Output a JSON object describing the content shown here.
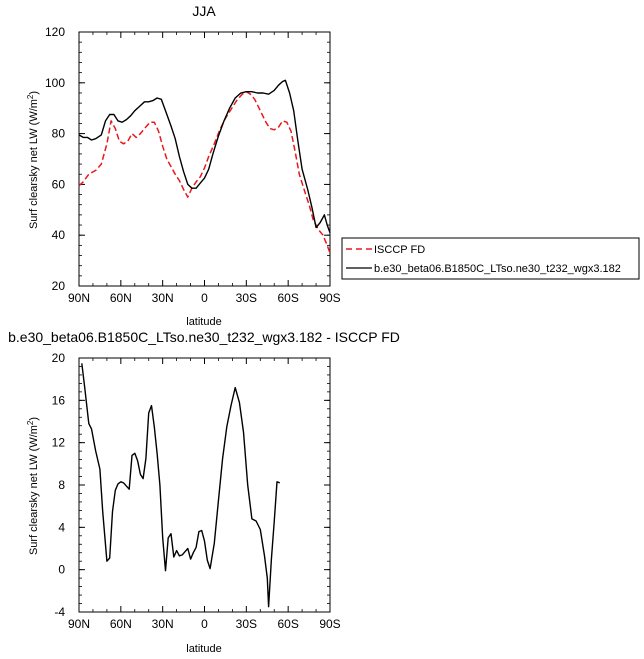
{
  "chart_data": [
    {
      "type": "line",
      "title": "JJA",
      "xlabel": "latitude",
      "ylabel": "Surf clearsky net LW (W/m²)",
      "ylim": [
        20,
        120
      ],
      "xlim": [
        -90,
        90
      ],
      "x_ticks": [
        -90,
        -60,
        -30,
        0,
        30,
        60,
        90
      ],
      "x_tick_labels": [
        "90N",
        "60N",
        "30N",
        "0",
        "30S",
        "60S",
        "90S"
      ],
      "y_ticks": [
        20,
        40,
        60,
        80,
        100,
        120
      ],
      "y_tick_labels": [
        "20",
        "40",
        "60",
        "80",
        "100",
        "120"
      ],
      "legend_position": "right",
      "series": [
        {
          "name": "ISCCP FD",
          "color": "#e8191e",
          "dash": true,
          "points": [
            [
              -90,
              59.5
            ],
            [
              -87,
              61
            ],
            [
              -83,
              64
            ],
            [
              -78,
              65.5
            ],
            [
              -74,
              68
            ],
            [
              -70,
              76
            ],
            [
              -67,
              85
            ],
            [
              -64,
              82
            ],
            [
              -61,
              77
            ],
            [
              -58,
              76
            ],
            [
              -55,
              77
            ],
            [
              -52,
              80
            ],
            [
              -49,
              78.5
            ],
            [
              -46,
              80
            ],
            [
              -43,
              82
            ],
            [
              -39,
              84.5
            ],
            [
              -36,
              84.5
            ],
            [
              -33,
              81
            ],
            [
              -30,
              75
            ],
            [
              -27,
              70
            ],
            [
              -24,
              67
            ],
            [
              -21,
              64
            ],
            [
              -18,
              61.5
            ],
            [
              -15,
              58
            ],
            [
              -12,
              55
            ],
            [
              -9,
              58.5
            ],
            [
              -6,
              61
            ],
            [
              -3,
              63
            ],
            [
              0,
              66.5
            ],
            [
              3,
              71
            ],
            [
              7,
              76
            ],
            [
              11,
              81.5
            ],
            [
              15,
              86
            ],
            [
              19,
              89.5
            ],
            [
              23,
              93
            ],
            [
              27,
              95.5
            ],
            [
              30,
              96.5
            ],
            [
              33,
              95.5
            ],
            [
              36,
              93.5
            ],
            [
              40,
              89
            ],
            [
              44,
              84.5
            ],
            [
              47,
              82
            ],
            [
              50,
              81.5
            ],
            [
              53,
              82.5
            ],
            [
              56,
              85
            ],
            [
              59,
              84.5
            ],
            [
              62,
              81
            ],
            [
              65,
              73
            ],
            [
              68,
              64
            ],
            [
              72,
              57
            ],
            [
              75,
              52
            ],
            [
              78,
              46
            ],
            [
              82,
              42
            ],
            [
              85,
              40
            ],
            [
              88,
              36
            ],
            [
              90,
              33
            ]
          ]
        },
        {
          "name": "b.e30_beta06.B1850C_LTso.ne30_t232_wgx3.182",
          "color": "#000000",
          "dash": false,
          "points": [
            [
              -90,
              79.5
            ],
            [
              -87,
              78.5
            ],
            [
              -84,
              78.5
            ],
            [
              -81,
              77.5
            ],
            [
              -78,
              78
            ],
            [
              -74,
              79.5
            ],
            [
              -71,
              85
            ],
            [
              -68,
              87.5
            ],
            [
              -65,
              87.5
            ],
            [
              -62,
              85
            ],
            [
              -59,
              84.5
            ],
            [
              -56,
              85.5
            ],
            [
              -53,
              87
            ],
            [
              -50,
              89
            ],
            [
              -47,
              90.5
            ],
            [
              -43,
              92.5
            ],
            [
              -40,
              92.5
            ],
            [
              -37,
              93
            ],
            [
              -34,
              94
            ],
            [
              -31,
              93.5
            ],
            [
              -28,
              89
            ],
            [
              -24,
              83
            ],
            [
              -21,
              78
            ],
            [
              -18,
              71
            ],
            [
              -15,
              65
            ],
            [
              -12,
              60
            ],
            [
              -9,
              58.5
            ],
            [
              -6,
              58.5
            ],
            [
              -3,
              60.5
            ],
            [
              0,
              62.5
            ],
            [
              3,
              66
            ],
            [
              6,
              72
            ],
            [
              10,
              79
            ],
            [
              14,
              85
            ],
            [
              18,
              90
            ],
            [
              22,
              94
            ],
            [
              26,
              96
            ],
            [
              30,
              96.5
            ],
            [
              34,
              96.5
            ],
            [
              38,
              96
            ],
            [
              42,
              96
            ],
            [
              46,
              95.5
            ],
            [
              50,
              97
            ],
            [
              53,
              99
            ],
            [
              56,
              100.5
            ],
            [
              58,
              101
            ],
            [
              61,
              96
            ],
            [
              64,
              89
            ],
            [
              67,
              77
            ],
            [
              70,
              66
            ],
            [
              74,
              58
            ],
            [
              77,
              51
            ],
            [
              80,
              43
            ],
            [
              83,
              45
            ],
            [
              86,
              48
            ],
            [
              88,
              44
            ],
            [
              90,
              41
            ]
          ]
        }
      ]
    },
    {
      "type": "line",
      "title": "b.e30_beta06.B1850C_LTso.ne30_t232_wgx3.182 - ISCCP FD",
      "xlabel": "latitude",
      "ylabel": "Surf clearsky net LW (W/m²)",
      "ylim": [
        -4,
        20
      ],
      "xlim": [
        -90,
        90
      ],
      "x_ticks": [
        -90,
        -60,
        -30,
        0,
        30,
        60,
        90
      ],
      "x_tick_labels": [
        "90N",
        "60N",
        "30N",
        "0",
        "30S",
        "60S",
        "90S"
      ],
      "y_ticks": [
        -4,
        0,
        4,
        8,
        12,
        16,
        20
      ],
      "y_tick_labels": [
        "-4",
        "0",
        "4",
        "8",
        "12",
        "16",
        "20"
      ],
      "series": [
        {
          "name": "",
          "color": "#000000",
          "dash": false,
          "points": [
            [
              -88,
              19.5
            ],
            [
              -86,
              17.3
            ],
            [
              -83,
              13.8
            ],
            [
              -81,
              13.3
            ],
            [
              -78,
              11.2
            ],
            [
              -75,
              9.5
            ],
            [
              -73,
              5.5
            ],
            [
              -70,
              0.8
            ],
            [
              -68,
              1.1
            ],
            [
              -66,
              5.5
            ],
            [
              -64,
              7.5
            ],
            [
              -62,
              8.1
            ],
            [
              -60,
              8.3
            ],
            [
              -58,
              8.2
            ],
            [
              -56,
              7.9
            ],
            [
              -54,
              7.6
            ],
            [
              -52,
              10.8
            ],
            [
              -50,
              11.0
            ],
            [
              -48,
              10.3
            ],
            [
              -46,
              9.0
            ],
            [
              -44,
              8.6
            ],
            [
              -42,
              10.5
            ],
            [
              -40,
              14.8
            ],
            [
              -38,
              15.5
            ],
            [
              -36,
              13.5
            ],
            [
              -34,
              11.0
            ],
            [
              -32,
              8.0
            ],
            [
              -30,
              3.0
            ],
            [
              -28,
              -0.1
            ],
            [
              -26,
              3.0
            ],
            [
              -24,
              3.4
            ],
            [
              -22,
              1.2
            ],
            [
              -20,
              1.8
            ],
            [
              -18,
              1.3
            ],
            [
              -16,
              1.4
            ],
            [
              -14,
              1.7
            ],
            [
              -12,
              2.0
            ],
            [
              -10,
              1.0
            ],
            [
              -8,
              1.6
            ],
            [
              -6,
              2.1
            ],
            [
              -4,
              3.6
            ],
            [
              -2,
              3.7
            ],
            [
              0,
              2.7
            ],
            [
              2,
              0.9
            ],
            [
              4,
              0.1
            ],
            [
              7,
              2.5
            ],
            [
              10,
              6.5
            ],
            [
              13,
              10.5
            ],
            [
              16,
              13.5
            ],
            [
              19,
              15.5
            ],
            [
              22,
              17.2
            ],
            [
              25,
              15.8
            ],
            [
              28,
              13.0
            ],
            [
              31,
              8.0
            ],
            [
              34,
              4.8
            ],
            [
              37,
              4.6
            ],
            [
              40,
              3.8
            ],
            [
              43,
              1.3
            ],
            [
              45,
              -0.8
            ],
            [
              46,
              -3.5
            ],
            [
              48,
              1.0
            ],
            [
              50,
              4.5
            ],
            [
              52,
              8.3
            ],
            [
              54,
              8.2
            ]
          ]
        }
      ]
    }
  ]
}
